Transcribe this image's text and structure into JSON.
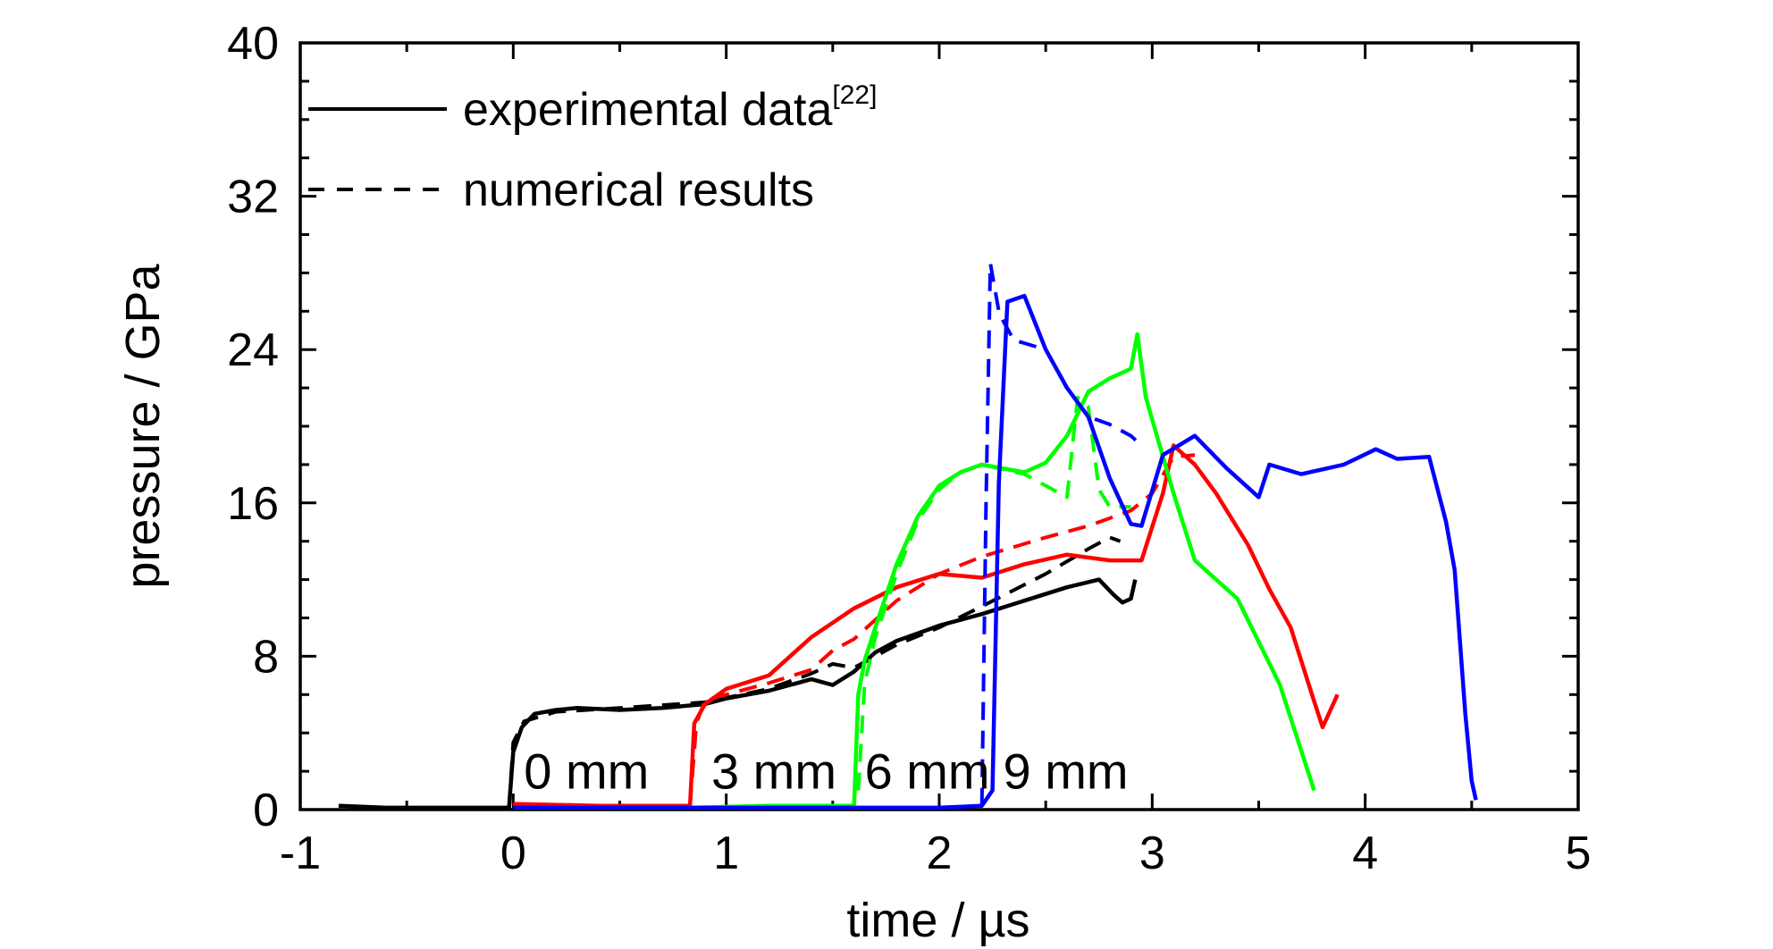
{
  "chart_data": {
    "type": "line",
    "xlabel": "time / µs",
    "ylabel": "pressure / GPa",
    "xlim": [
      -1,
      5
    ],
    "ylim": [
      0,
      40
    ],
    "x_ticks": [
      "-1",
      "0",
      "1",
      "2",
      "3",
      "4",
      "5"
    ],
    "y_ticks": [
      "0",
      "8",
      "16",
      "24",
      "32",
      "40"
    ],
    "legend": {
      "position": "top-left",
      "entries": [
        {
          "label": "experimental data",
          "superscript": "[22]",
          "style": "solid"
        },
        {
          "label": "numerical results",
          "style": "dashed"
        }
      ]
    },
    "annotations": [
      {
        "text": "0 mm",
        "x": 0.05,
        "y": 1.1
      },
      {
        "text": "3 mm",
        "x": 0.93,
        "y": 1.1
      },
      {
        "text": "6 mm",
        "x": 1.65,
        "y": 1.1
      },
      {
        "text": "9 mm",
        "x": 2.3,
        "y": 1.1
      }
    ],
    "series": [
      {
        "gauge": "0 mm",
        "color": "#000000",
        "experimental": {
          "x": [
            -0.82,
            -0.6,
            -0.4,
            -0.2,
            -0.02,
            0.0,
            0.04,
            0.1,
            0.2,
            0.3,
            0.5,
            0.7,
            0.9,
            1.0,
            1.2,
            1.4,
            1.5,
            1.6,
            1.7,
            1.8,
            1.9,
            2.0,
            2.2,
            2.4,
            2.6,
            2.75,
            2.82,
            2.86,
            2.9,
            2.92
          ],
          "y": [
            0.2,
            0.1,
            0.1,
            0.1,
            0.1,
            3.0,
            4.3,
            5.0,
            5.2,
            5.3,
            5.2,
            5.3,
            5.5,
            5.8,
            6.2,
            6.8,
            6.5,
            7.2,
            8.2,
            8.8,
            9.2,
            9.6,
            10.2,
            10.9,
            11.6,
            12.0,
            11.2,
            10.8,
            11.0,
            12.0
          ]
        },
        "numerical": {
          "x": [
            -0.02,
            0.0,
            0.05,
            0.2,
            0.5,
            0.9,
            1.2,
            1.4,
            1.5,
            1.6,
            1.7,
            1.8,
            2.0,
            2.2,
            2.5,
            2.7,
            2.8,
            2.85
          ],
          "y": [
            0.1,
            3.5,
            4.6,
            5.1,
            5.3,
            5.6,
            6.3,
            7.1,
            7.6,
            7.4,
            8.0,
            8.6,
            9.5,
            10.6,
            12.3,
            13.6,
            14.2,
            14.0
          ]
        }
      },
      {
        "gauge": "3 mm",
        "color": "#ff0000",
        "experimental": {
          "x": [
            0.0,
            0.4,
            0.83,
            0.85,
            0.9,
            1.0,
            1.2,
            1.4,
            1.6,
            1.8,
            2.0,
            2.2,
            2.4,
            2.6,
            2.8,
            2.95,
            3.05,
            3.1,
            3.2,
            3.3,
            3.45,
            3.55,
            3.65,
            3.75,
            3.8,
            3.87
          ],
          "y": [
            0.3,
            0.2,
            0.2,
            4.5,
            5.5,
            6.3,
            7.0,
            9.0,
            10.5,
            11.6,
            12.3,
            12.1,
            12.8,
            13.3,
            13.0,
            13.0,
            16.5,
            19.0,
            18.0,
            16.5,
            13.8,
            11.5,
            9.5,
            6.0,
            4.3,
            6.0
          ]
        },
        "numerical": {
          "x": [
            0.83,
            0.86,
            0.9,
            1.0,
            1.2,
            1.4,
            1.5,
            1.6,
            1.8,
            2.0,
            2.2,
            2.5,
            2.7,
            2.9,
            3.0,
            3.1,
            3.2
          ],
          "y": [
            0.2,
            4.5,
            5.7,
            6.0,
            6.6,
            7.3,
            8.3,
            8.9,
            10.9,
            12.3,
            13.2,
            14.2,
            14.8,
            15.6,
            16.5,
            18.4,
            18.5
          ]
        }
      },
      {
        "gauge": "6 mm",
        "color": "#00ff00",
        "experimental": {
          "x": [
            0.83,
            1.2,
            1.6,
            1.62,
            1.65,
            1.7,
            1.8,
            1.9,
            2.0,
            2.1,
            2.2,
            2.4,
            2.5,
            2.6,
            2.7,
            2.8,
            2.9,
            2.93,
            2.97,
            3.1,
            3.2,
            3.4,
            3.6,
            3.76
          ],
          "y": [
            0.1,
            0.2,
            0.2,
            6.0,
            7.8,
            9.5,
            12.8,
            15.3,
            16.9,
            17.6,
            18.0,
            17.6,
            18.1,
            19.5,
            21.8,
            22.5,
            23.0,
            24.8,
            21.5,
            16.5,
            13.0,
            11.0,
            6.5,
            1.0
          ]
        },
        "numerical": {
          "x": [
            1.62,
            1.65,
            1.7,
            1.8,
            1.9,
            2.0,
            2.1,
            2.2,
            2.4,
            2.6,
            2.65,
            2.7,
            2.75,
            2.8,
            2.9
          ],
          "y": [
            1.0,
            6.6,
            9.0,
            12.3,
            15.1,
            16.7,
            17.6,
            18.0,
            17.5,
            16.3,
            21.5,
            21.0,
            16.7,
            15.8,
            15.8
          ]
        }
      },
      {
        "gauge": "9 mm",
        "color": "#0000ff",
        "experimental": {
          "x": [
            0.0,
            1.0,
            1.6,
            2.0,
            2.2,
            2.25,
            2.28,
            2.32,
            2.4,
            2.5,
            2.6,
            2.7,
            2.8,
            2.9,
            2.95,
            3.05,
            3.2,
            3.35,
            3.5,
            3.55,
            3.7,
            3.9,
            4.05,
            4.15,
            4.3,
            4.38,
            4.42,
            4.47,
            4.5,
            4.52
          ],
          "y": [
            0.1,
            0.1,
            0.1,
            0.1,
            0.2,
            1.0,
            17.0,
            26.5,
            26.8,
            24.0,
            22.0,
            20.5,
            17.3,
            14.9,
            14.8,
            18.5,
            19.5,
            17.8,
            16.3,
            18.0,
            17.5,
            18.0,
            18.8,
            18.3,
            18.4,
            15.0,
            12.5,
            5.0,
            1.5,
            0.5
          ]
        },
        "numerical": {
          "x": [
            2.2,
            2.22,
            2.24,
            2.28,
            2.3,
            2.35,
            2.5,
            2.6,
            2.7,
            2.8,
            2.9,
            2.95
          ],
          "y": [
            0.2,
            16.0,
            28.5,
            26.0,
            25.5,
            24.5,
            24.0,
            22.0,
            20.5,
            20.1,
            19.5,
            19.0
          ]
        }
      }
    ]
  }
}
